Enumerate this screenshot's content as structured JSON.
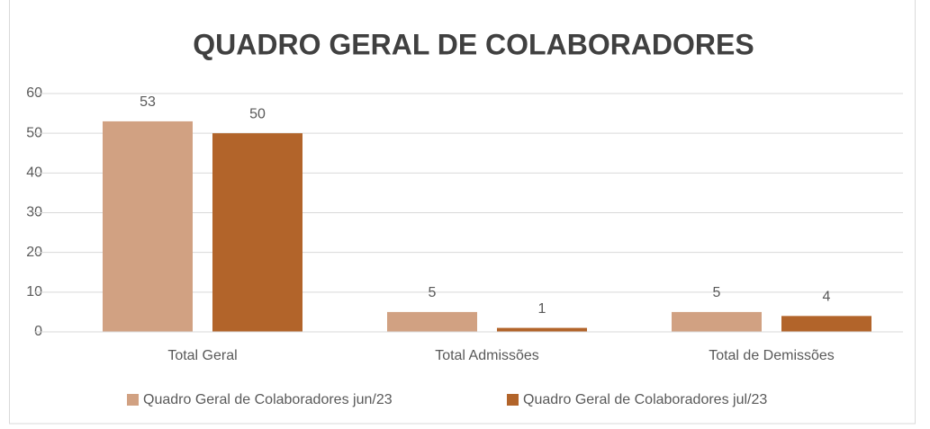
{
  "chart_data": {
    "type": "bar",
    "title": "QUADRO GERAL DE COLABORADORES",
    "categories": [
      "Total Geral",
      "Total Admissões",
      "Total de Demissões"
    ],
    "series": [
      {
        "name": "Quadro Geral de Colaboradores jun/23",
        "color": "#d1a182",
        "values": [
          53,
          5,
          5
        ]
      },
      {
        "name": "Quadro Geral de Colaboradores jul/23",
        "color": "#b2642a",
        "values": [
          50,
          1,
          4
        ]
      }
    ],
    "ylim": [
      0,
      60
    ],
    "yticks": [
      0,
      10,
      20,
      30,
      40,
      50,
      60
    ],
    "grid": true,
    "legend": "bottom"
  }
}
